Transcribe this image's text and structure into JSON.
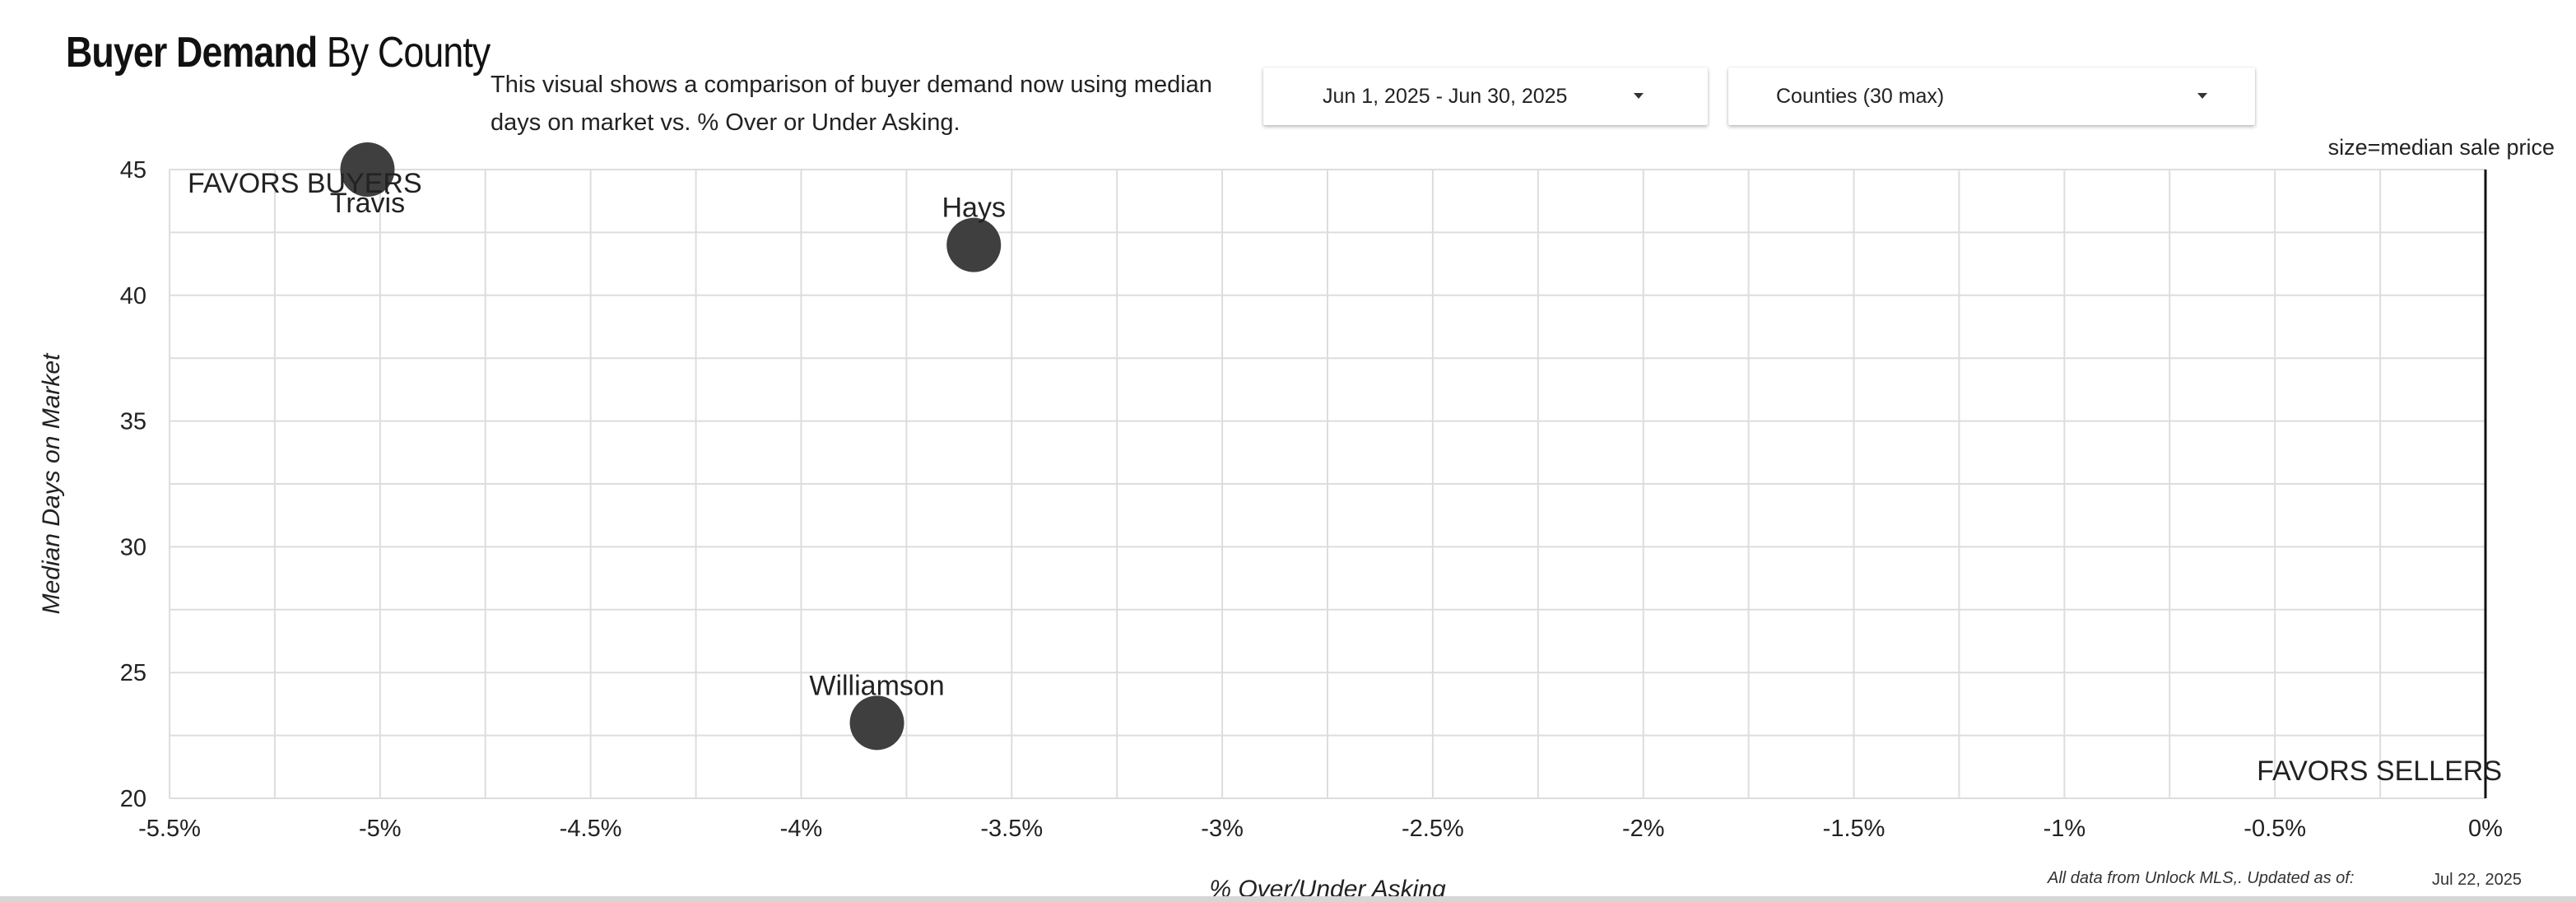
{
  "header": {
    "title_bold": "Buyer Demand",
    "title_rest": "By County",
    "description": "This visual shows a comparison of buyer demand now using median days on market vs. % Over or Under Asking."
  },
  "filters": {
    "date_range": "Jun 1, 2025 - Jun 30, 2025",
    "counties": "Counties (30 max)"
  },
  "size_note": "size=median sale price",
  "footer": {
    "source": "All data from Unlock MLS,. Updated as of:",
    "updated_date": "Jul 22, 2025"
  },
  "colors": {
    "point": "#3f3f3f",
    "grid": "#dddddd",
    "ref_line": "#111111"
  },
  "chart_data": {
    "type": "scatter",
    "title": "Buyer Demand By County",
    "xlabel": "% Over/Under Asking",
    "ylabel": "Median Days on Market",
    "xlim": [
      -5.5,
      0
    ],
    "ylim": [
      20,
      45
    ],
    "x_ticks": [
      -5.5,
      -5,
      -4.5,
      -4,
      -3.5,
      -3,
      -2.5,
      -2,
      -1.5,
      -1,
      -0.5,
      0
    ],
    "x_tick_labels": [
      "-5.5%",
      "-5%",
      "-4.5%",
      "-4%",
      "-3.5%",
      "-3%",
      "-2.5%",
      "-2%",
      "-1.5%",
      "-1%",
      "-0.5%",
      "0%"
    ],
    "y_ticks": [
      20,
      25,
      30,
      35,
      40,
      45
    ],
    "y_tick_labels": [
      "20",
      "25",
      "30",
      "35",
      "40",
      "45"
    ],
    "grid": true,
    "reference_line_x": 0,
    "annotations": [
      "FAVORS BUYERS",
      "FAVORS SELLERS"
    ],
    "size_encoding": "median sale price",
    "points": [
      {
        "label": "Travis",
        "x": -5.03,
        "y": 45.0,
        "label_position": "below"
      },
      {
        "label": "Hays",
        "x": -3.59,
        "y": 42.0,
        "label_position": "above"
      },
      {
        "label": "Williamson",
        "x": -3.82,
        "y": 23.0,
        "label_position": "above"
      }
    ]
  }
}
